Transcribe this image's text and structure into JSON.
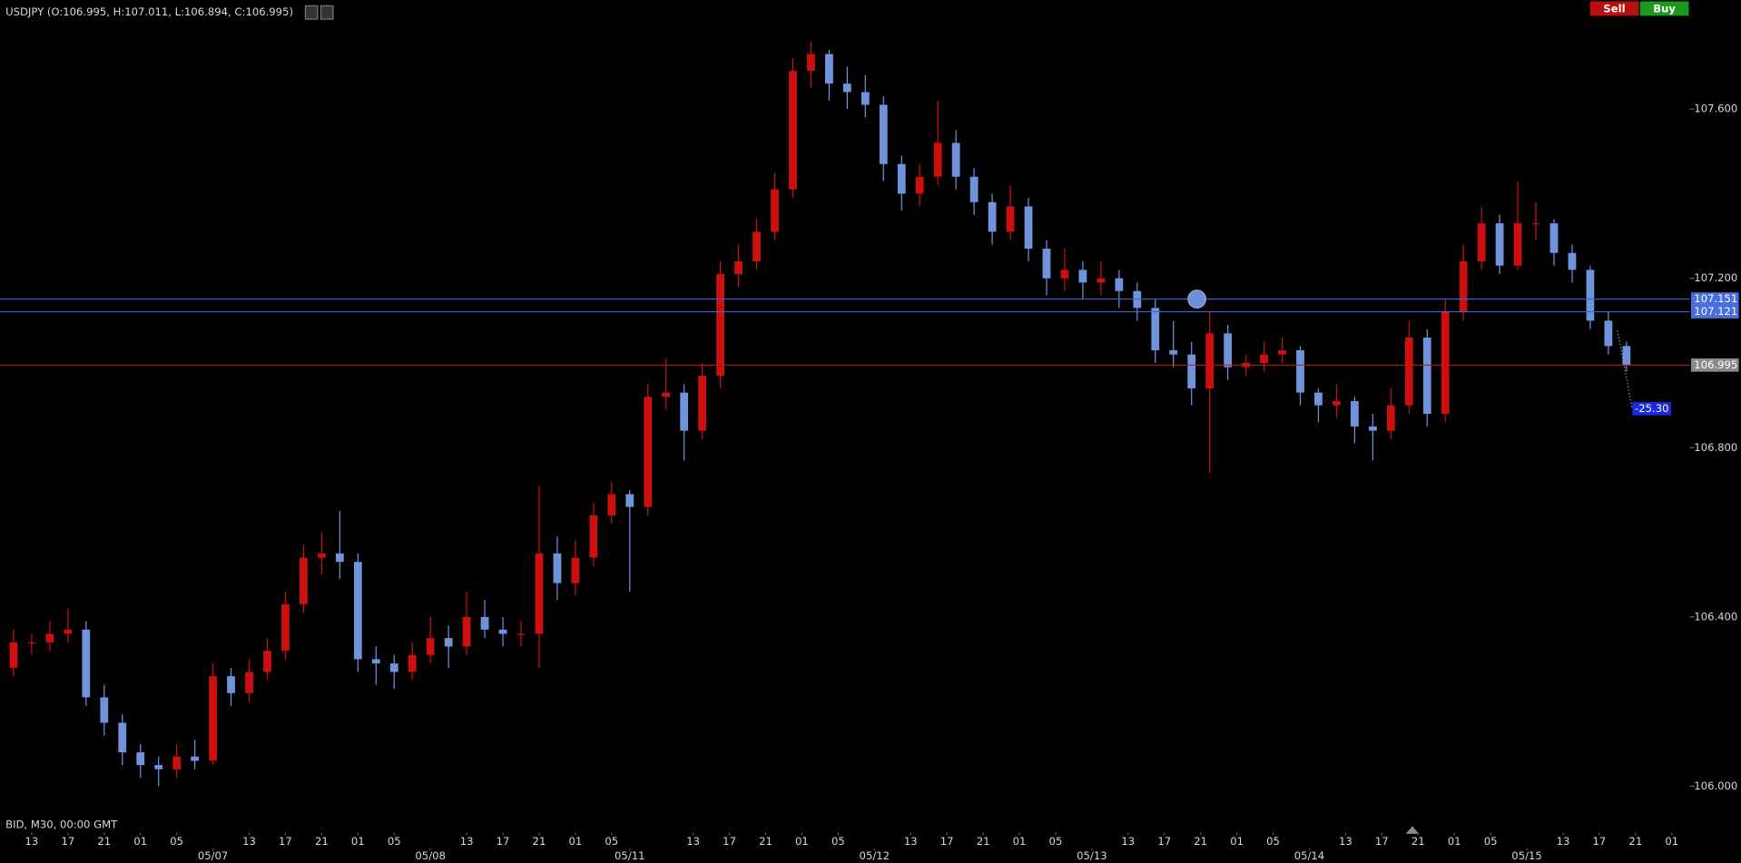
{
  "header": {
    "title": "USDJPY (O:106.995, H:107.011, L:106.894, C:106.995)",
    "sell": "Sell",
    "buy": "Buy",
    "footer": "BID, M30, 00:00 GMT"
  },
  "chart_data": {
    "type": "candlestick",
    "x": [
      1,
      5,
      9,
      13,
      17,
      21,
      25,
      29,
      33,
      37,
      41,
      45,
      49,
      53,
      57,
      61,
      65,
      69,
      73,
      77,
      81,
      85,
      89,
      93,
      97,
      101,
      105,
      109,
      113,
      117,
      121,
      125,
      129,
      133,
      137,
      141,
      145,
      149,
      153,
      157,
      161,
      165,
      169,
      173,
      177,
      181,
      185,
      189,
      193,
      197,
      201,
      205,
      209,
      213,
      217,
      221,
      225,
      229,
      233,
      237,
      241,
      245,
      249,
      253,
      257,
      261,
      265,
      269,
      273,
      277,
      281,
      285,
      289,
      293,
      297,
      301,
      305,
      309,
      313,
      317,
      321,
      325,
      329,
      333,
      337,
      341,
      345,
      349,
      353,
      357
    ],
    "open": [
      106.28,
      106.34,
      106.34,
      106.36,
      106.37,
      106.21,
      106.15,
      106.08,
      106.05,
      106.04,
      106.07,
      106.06,
      106.26,
      106.22,
      106.27,
      106.32,
      106.43,
      106.54,
      106.55,
      106.53,
      106.3,
      106.29,
      106.27,
      106.31,
      106.35,
      106.33,
      106.4,
      106.37,
      106.36,
      106.36,
      106.55,
      106.48,
      106.54,
      106.64,
      106.69,
      106.66,
      106.92,
      106.93,
      106.84,
      106.97,
      107.21,
      107.24,
      107.31,
      107.41,
      107.69,
      107.73,
      107.66,
      107.64,
      107.61,
      107.47,
      107.4,
      107.44,
      107.52,
      107.44,
      107.38,
      107.31,
      107.37,
      107.27,
      107.2,
      107.22,
      107.19,
      107.2,
      107.17,
      107.13,
      107.03,
      107.02,
      106.94,
      107.07,
      106.99,
      107.0,
      107.02,
      107.03,
      106.93,
      106.9,
      106.91,
      106.85,
      106.84,
      106.9,
      107.06,
      106.88,
      107.12,
      107.24,
      107.33,
      107.23,
      107.33,
      107.33,
      107.26,
      107.22,
      107.1,
      107.04
    ],
    "high": [
      106.37,
      106.36,
      106.39,
      106.42,
      106.39,
      106.24,
      106.17,
      106.1,
      106.07,
      106.1,
      106.11,
      106.29,
      106.28,
      106.3,
      106.35,
      106.46,
      106.57,
      106.6,
      106.65,
      106.55,
      106.33,
      106.31,
      106.34,
      106.4,
      106.38,
      106.46,
      106.44,
      106.4,
      106.39,
      106.71,
      106.59,
      106.58,
      106.67,
      106.72,
      106.7,
      106.95,
      107.01,
      106.95,
      107.0,
      107.24,
      107.28,
      107.34,
      107.45,
      107.72,
      107.76,
      107.74,
      107.7,
      107.68,
      107.63,
      107.49,
      107.47,
      107.62,
      107.55,
      107.46,
      107.4,
      107.42,
      107.39,
      107.29,
      107.27,
      107.24,
      107.24,
      107.22,
      107.19,
      107.15,
      107.1,
      107.05,
      107.12,
      107.09,
      107.02,
      107.05,
      107.06,
      107.04,
      106.94,
      106.95,
      106.92,
      106.88,
      106.94,
      107.1,
      107.08,
      107.15,
      107.28,
      107.37,
      107.35,
      107.43,
      107.38,
      107.34,
      107.28,
      107.23,
      107.12,
      107.05
    ],
    "low": [
      106.26,
      106.31,
      106.32,
      106.34,
      106.19,
      106.12,
      106.05,
      106.02,
      106.0,
      106.02,
      106.04,
      106.05,
      106.19,
      106.2,
      106.25,
      106.3,
      106.41,
      106.5,
      106.49,
      106.27,
      106.24,
      106.23,
      106.25,
      106.29,
      106.28,
      106.31,
      106.35,
      106.33,
      106.33,
      106.28,
      106.44,
      106.45,
      106.52,
      106.62,
      106.46,
      106.64,
      106.89,
      106.77,
      106.82,
      106.94,
      107.18,
      107.22,
      107.29,
      107.39,
      107.65,
      107.62,
      107.6,
      107.58,
      107.43,
      107.36,
      107.37,
      107.42,
      107.41,
      107.35,
      107.28,
      107.29,
      107.24,
      107.16,
      107.17,
      107.15,
      107.16,
      107.13,
      107.1,
      107.0,
      106.99,
      106.9,
      106.74,
      106.96,
      106.97,
      106.98,
      107.0,
      106.9,
      106.86,
      106.87,
      106.81,
      106.77,
      106.82,
      106.88,
      106.85,
      106.86,
      107.1,
      107.22,
      107.21,
      107.22,
      107.29,
      107.23,
      107.19,
      107.08,
      107.02,
      106.98
    ],
    "close": [
      106.34,
      106.34,
      106.36,
      106.37,
      106.21,
      106.15,
      106.08,
      106.05,
      106.04,
      106.07,
      106.06,
      106.26,
      106.22,
      106.27,
      106.32,
      106.43,
      106.54,
      106.55,
      106.53,
      106.3,
      106.29,
      106.27,
      106.31,
      106.35,
      106.33,
      106.4,
      106.37,
      106.36,
      106.36,
      106.55,
      106.48,
      106.54,
      106.64,
      106.69,
      106.66,
      106.92,
      106.93,
      106.84,
      106.97,
      107.21,
      107.24,
      107.31,
      107.41,
      107.69,
      107.73,
      107.66,
      107.64,
      107.61,
      107.47,
      107.4,
      107.44,
      107.52,
      107.44,
      107.38,
      107.31,
      107.37,
      107.27,
      107.2,
      107.22,
      107.19,
      107.2,
      107.17,
      107.13,
      107.03,
      107.02,
      106.94,
      107.07,
      106.99,
      107.0,
      107.02,
      107.03,
      106.93,
      106.9,
      106.91,
      106.85,
      106.84,
      106.9,
      107.06,
      106.88,
      107.12,
      107.24,
      107.33,
      107.23,
      107.33,
      107.33,
      107.26,
      107.22,
      107.1,
      107.04,
      106.995
    ],
    "up_color": "#cc1010",
    "down_color": "#7094dc",
    "xlim": [
      0,
      373
    ],
    "ylim": [
      105.89,
      107.857
    ],
    "yticks": [
      {
        "value": 106,
        "label": "106.000"
      },
      {
        "value": 106.4,
        "label": "106.400"
      },
      {
        "value": 106.8,
        "label": "106.800"
      },
      {
        "value": 107.2,
        "label": "107.200"
      },
      {
        "value": 107.6,
        "label": "107.600"
      }
    ],
    "xticks": [
      {
        "value": 7,
        "label": "13"
      },
      {
        "value": 15,
        "label": "17"
      },
      {
        "value": 23,
        "label": "21"
      },
      {
        "value": 31,
        "label": "01"
      },
      {
        "value": 39,
        "label": "05"
      },
      {
        "value": 55,
        "label": "13"
      },
      {
        "value": 63,
        "label": "17"
      },
      {
        "value": 71,
        "label": "21"
      },
      {
        "value": 79,
        "label": "01"
      },
      {
        "value": 87,
        "label": "05"
      },
      {
        "value": 103,
        "label": "13"
      },
      {
        "value": 111,
        "label": "17"
      },
      {
        "value": 119,
        "label": "21"
      },
      {
        "value": 127,
        "label": "01"
      },
      {
        "value": 135,
        "label": "05"
      },
      {
        "value": 153,
        "label": "13"
      },
      {
        "value": 161,
        "label": "17"
      },
      {
        "value": 169,
        "label": "21"
      },
      {
        "value": 177,
        "label": "01"
      },
      {
        "value": 185,
        "label": "05"
      },
      {
        "value": 201,
        "label": "13"
      },
      {
        "value": 209,
        "label": "17"
      },
      {
        "value": 217,
        "label": "21"
      },
      {
        "value": 225,
        "label": "01"
      },
      {
        "value": 233,
        "label": "05"
      },
      {
        "value": 249,
        "label": "13"
      },
      {
        "value": 257,
        "label": "17"
      },
      {
        "value": 265,
        "label": "21"
      },
      {
        "value": 273,
        "label": "01"
      },
      {
        "value": 281,
        "label": "05"
      },
      {
        "value": 297,
        "label": "13"
      },
      {
        "value": 305,
        "label": "17"
      },
      {
        "value": 313,
        "label": "21"
      },
      {
        "value": 321,
        "label": "01"
      },
      {
        "value": 329,
        "label": "05"
      },
      {
        "value": 345,
        "label": "13"
      },
      {
        "value": 353,
        "label": "17"
      },
      {
        "value": 361,
        "label": "21"
      },
      {
        "value": 369,
        "label": "01"
      }
    ],
    "date_ticks": [
      {
        "value": 47,
        "label": "05/07"
      },
      {
        "value": 95,
        "label": "05/08"
      },
      {
        "value": 139,
        "label": "05/11"
      },
      {
        "value": 193,
        "label": "05/12"
      },
      {
        "value": 241,
        "label": "05/13"
      },
      {
        "value": 289,
        "label": "05/14"
      },
      {
        "value": 337,
        "label": "05/15"
      }
    ],
    "price_lines": [
      {
        "value": 107.151,
        "color": "#3f63d0"
      },
      {
        "value": 107.121,
        "color": "#3f63d0"
      },
      {
        "value": 106.995,
        "color": "#c01818"
      }
    ],
    "annotation": "-25.30"
  }
}
